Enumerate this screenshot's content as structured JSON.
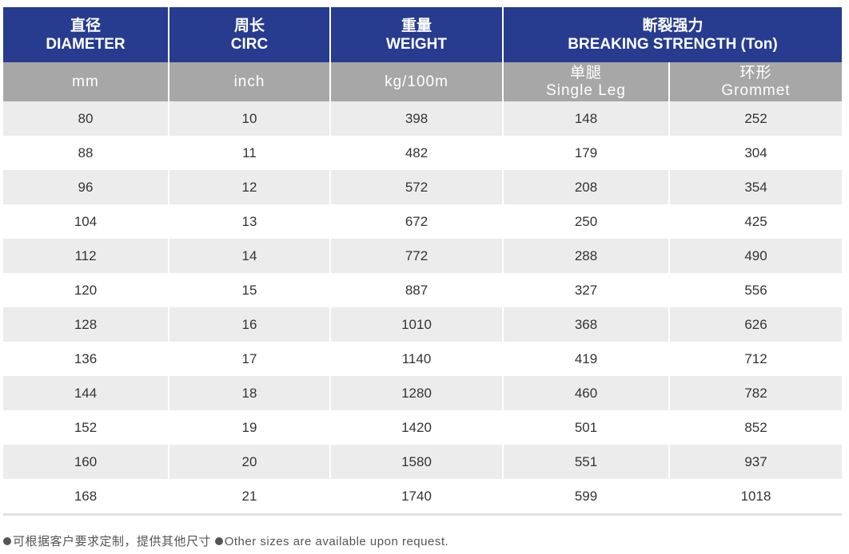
{
  "headers": {
    "diameter": {
      "cn": "直径",
      "en": "DIAMETER"
    },
    "circ": {
      "cn": "周长",
      "en": "CIRC"
    },
    "weight": {
      "cn": "重量",
      "en": "WEIGHT"
    },
    "breaking": {
      "cn": "断裂强力",
      "en": "BREAKING STRENGTH (Ton)"
    }
  },
  "units": {
    "diameter": "mm",
    "circ": "inch",
    "weight": "kg/100m",
    "single_leg": {
      "cn": "单腿",
      "en": "Single Leg"
    },
    "grommet": {
      "cn": "环形",
      "en": "Grommet"
    }
  },
  "rows": [
    [
      "80",
      "10",
      "398",
      "148",
      "252"
    ],
    [
      "88",
      "11",
      "482",
      "179",
      "304"
    ],
    [
      "96",
      "12",
      "572",
      "208",
      "354"
    ],
    [
      "104",
      "13",
      "672",
      "250",
      "425"
    ],
    [
      "112",
      "14",
      "772",
      "288",
      "490"
    ],
    [
      "120",
      "15",
      "887",
      "327",
      "556"
    ],
    [
      "128",
      "16",
      "1010",
      "368",
      "626"
    ],
    [
      "136",
      "17",
      "1140",
      "419",
      "712"
    ],
    [
      "144",
      "18",
      "1280",
      "460",
      "782"
    ],
    [
      "152",
      "19",
      "1420",
      "501",
      "852"
    ],
    [
      "160",
      "20",
      "1580",
      "551",
      "937"
    ],
    [
      "168",
      "21",
      "1740",
      "599",
      "1018"
    ]
  ],
  "footnote": {
    "cn": "可根据客户要求定制，提供其他尺寸",
    "en": "Other sizes are available upon request."
  },
  "colors": {
    "header_blue": "#273c8f",
    "header_gray": "#a7a7a8",
    "row_stripe": "#ececec"
  }
}
